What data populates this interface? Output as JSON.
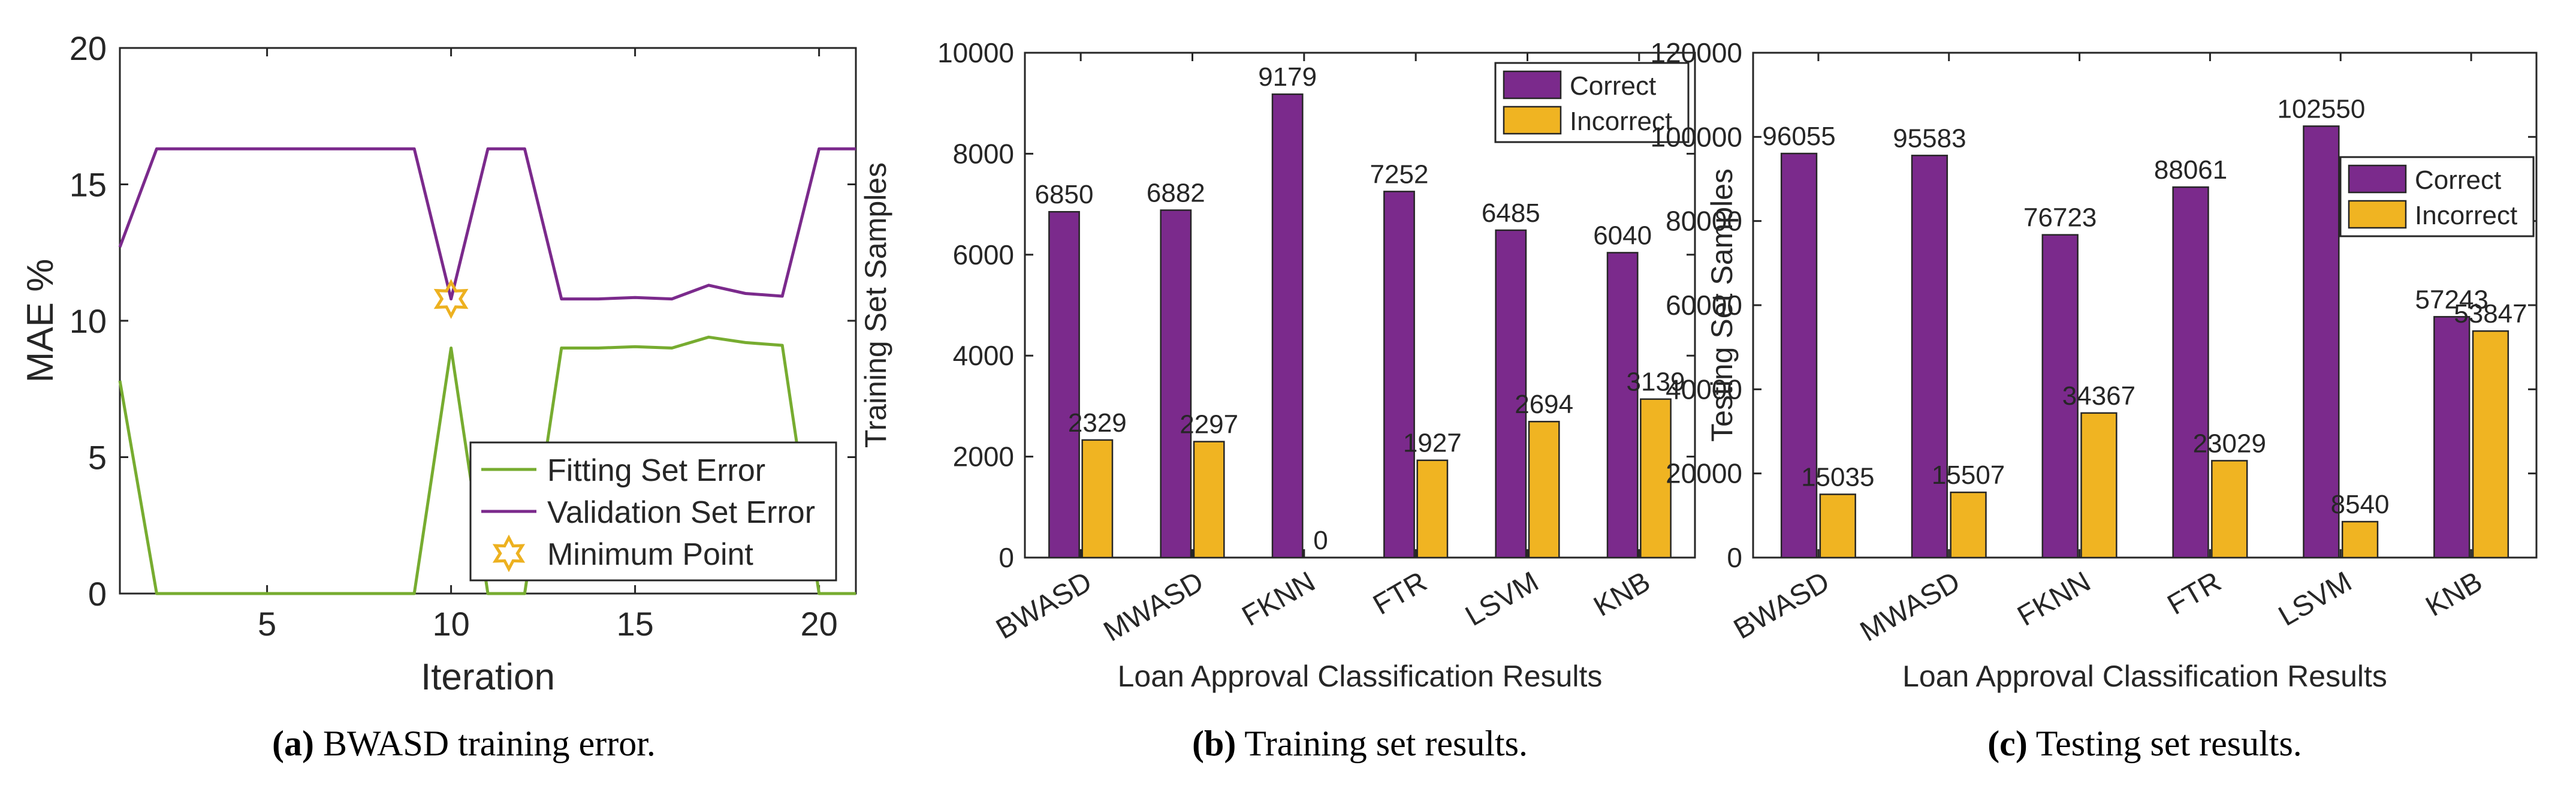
{
  "colors": {
    "purple": "#7b2a8c",
    "orange": "#f0b422",
    "green": "#77ac30",
    "star": "#edb120",
    "axis": "#262626"
  },
  "chart_data": [
    {
      "id": "a",
      "type": "line",
      "caption_letter": "(a)",
      "caption_text": "BWASD training error.",
      "xlabel": "Iteration",
      "ylabel": "MAE %",
      "xlim": [
        1,
        21
      ],
      "ylim": [
        0,
        20
      ],
      "xticks": [
        5,
        10,
        15,
        20
      ],
      "yticks": [
        0,
        5,
        10,
        15,
        20
      ],
      "legend": [
        "Fitting Set Error",
        "Validation Set Error",
        "Minimum Point"
      ],
      "legend_position": "bottom-right",
      "series": [
        {
          "name": "Fitting Set Error",
          "x": [
            1,
            2,
            3,
            4,
            5,
            6,
            7,
            8,
            9,
            10,
            11,
            12,
            13,
            14,
            15,
            16,
            17,
            18,
            19,
            20,
            21
          ],
          "y": [
            7.8,
            0,
            0,
            0,
            0,
            0,
            0,
            0,
            0,
            9.0,
            0,
            0,
            9.0,
            9.0,
            9.05,
            9.0,
            9.4,
            9.2,
            9.1,
            0,
            0
          ]
        },
        {
          "name": "Validation Set Error",
          "x": [
            1,
            2,
            3,
            4,
            5,
            6,
            7,
            8,
            9,
            10,
            11,
            12,
            13,
            14,
            15,
            16,
            17,
            18,
            19,
            20,
            21
          ],
          "y": [
            12.7,
            16.3,
            16.3,
            16.3,
            16.3,
            16.3,
            16.3,
            16.3,
            16.3,
            10.8,
            16.3,
            16.3,
            10.8,
            10.8,
            10.85,
            10.8,
            11.3,
            11.0,
            10.9,
            16.3,
            16.3
          ]
        }
      ],
      "minimum_point": {
        "name": "Minimum Point",
        "x": 10,
        "y": 10.8
      }
    },
    {
      "id": "b",
      "type": "bar",
      "caption_letter": "(b)",
      "caption_text": "Training set results.",
      "xlabel": "Loan Approval Classification Results",
      "ylabel": "Training Set Samples",
      "categories": [
        "BWASD",
        "MWASD",
        "FKNN",
        "FTR",
        "LSVM",
        "KNB"
      ],
      "ylim": [
        0,
        10000
      ],
      "yticks": [
        0,
        2000,
        4000,
        6000,
        8000,
        10000
      ],
      "legend_position": "top-right",
      "series": [
        {
          "name": "Correct",
          "values": [
            6850,
            6882,
            9179,
            7252,
            6485,
            6040
          ]
        },
        {
          "name": "Incorrect",
          "values": [
            2329,
            2297,
            0,
            1927,
            2694,
            3139
          ]
        }
      ]
    },
    {
      "id": "c",
      "type": "bar",
      "caption_letter": "(c)",
      "caption_text": "Testing set results.",
      "xlabel": "Loan Approval Classification Results",
      "ylabel": "Testing Set Samples",
      "categories": [
        "BWASD",
        "MWASD",
        "FKNN",
        "FTR",
        "LSVM",
        "KNB"
      ],
      "ylim": [
        0,
        120000
      ],
      "yticks": [
        0,
        20000,
        40000,
        60000,
        80000,
        100000,
        120000
      ],
      "legend_position": "top-right",
      "series": [
        {
          "name": "Correct",
          "values": [
            96055,
            95583,
            76723,
            88061,
            102550,
            57243
          ]
        },
        {
          "name": "Incorrect",
          "values": [
            15035,
            15507,
            34367,
            23029,
            8540,
            53847
          ]
        }
      ]
    }
  ]
}
